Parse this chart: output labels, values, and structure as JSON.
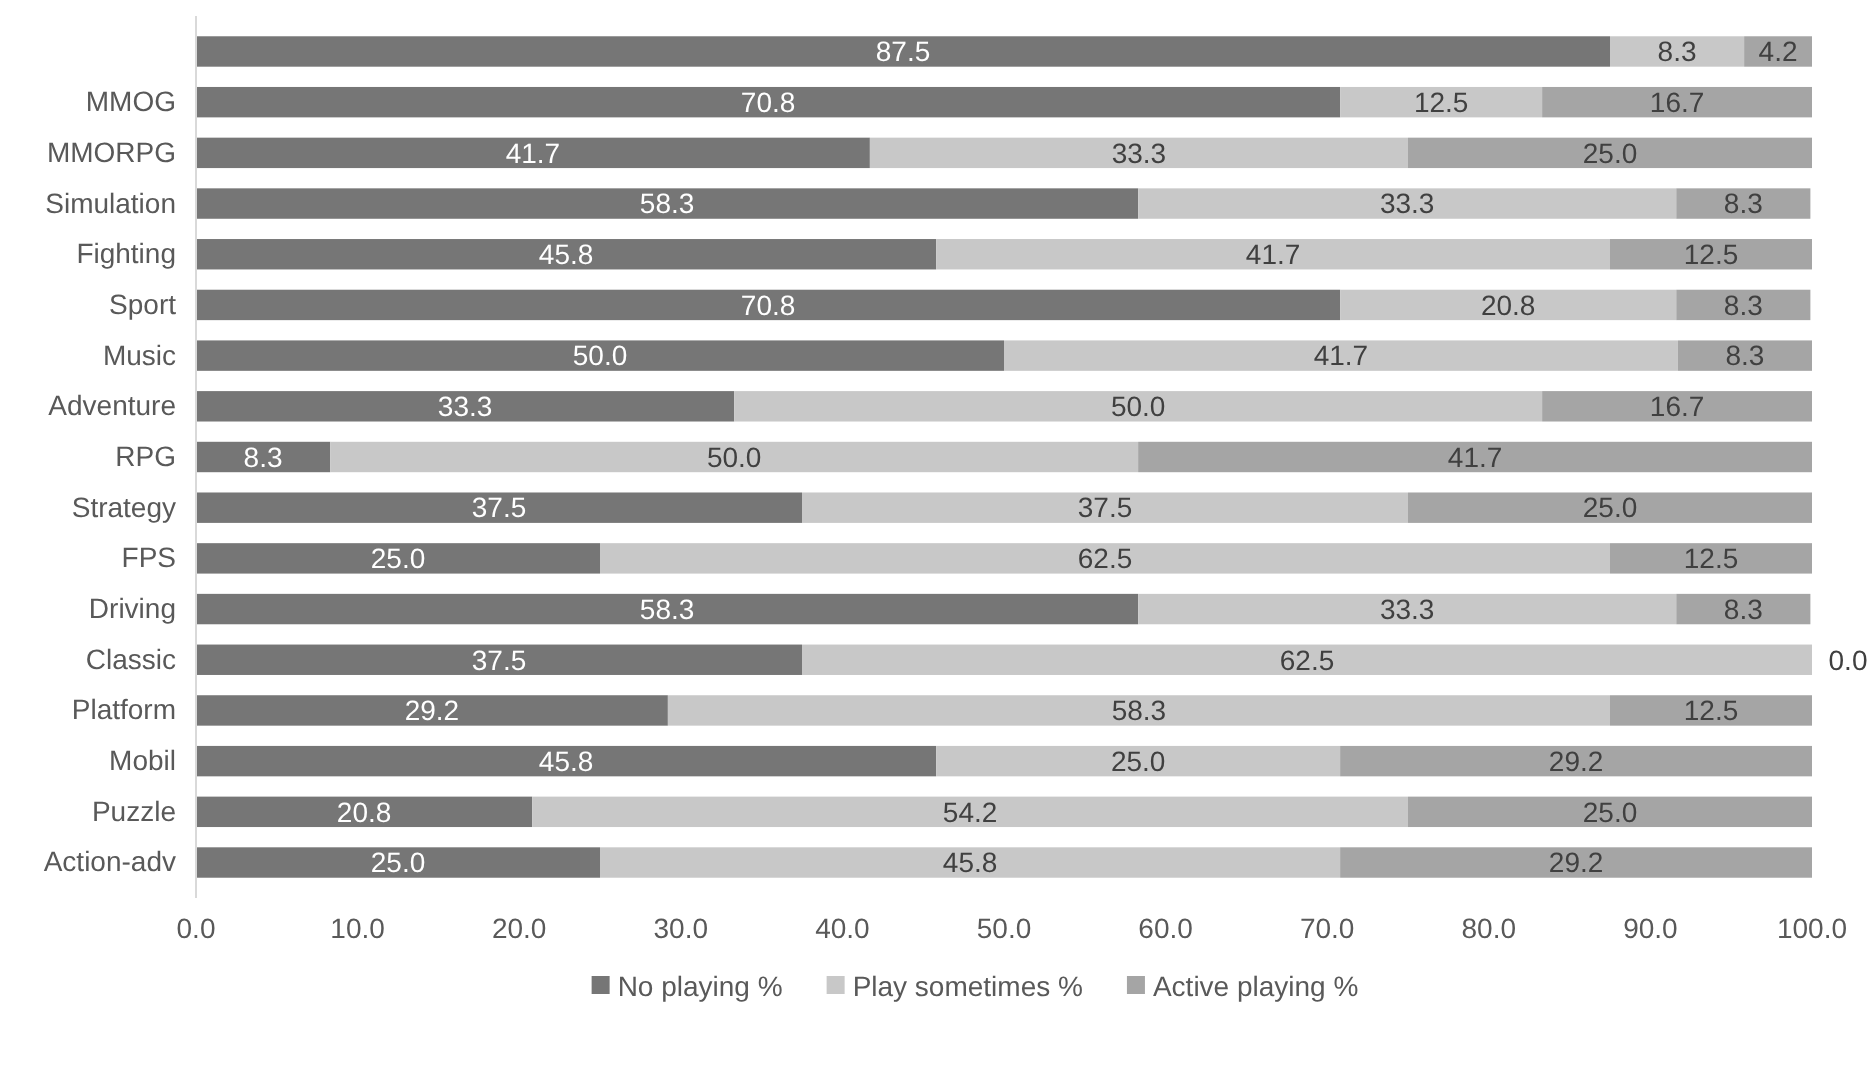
{
  "chart_data": {
    "type": "bar",
    "orientation": "horizontal",
    "stacked": true,
    "legend": "bottom",
    "grid": false,
    "categories": [
      null,
      "MMOG",
      "MMORPG",
      "Simulation",
      "Fighting",
      "Sport",
      "Music",
      "Adventure",
      "RPG",
      "Strategy",
      "FPS",
      "Driving",
      "Classic",
      "Platform",
      "Mobil",
      "Puzzle",
      "Action-adv"
    ],
    "xlim": [
      0,
      100
    ],
    "xticks": [
      {
        "value": 0,
        "label": "0.0"
      },
      {
        "value": 10,
        "label": "10.0"
      },
      {
        "value": 20,
        "label": "20.0"
      },
      {
        "value": 30,
        "label": "30.0"
      },
      {
        "value": 40,
        "label": "40.0"
      },
      {
        "value": 50,
        "label": "50.0"
      },
      {
        "value": 60,
        "label": "60.0"
      },
      {
        "value": 70,
        "label": "70.0"
      },
      {
        "value": 80,
        "label": "80.0"
      },
      {
        "value": 90,
        "label": "90.0"
      },
      {
        "value": 100,
        "label": "100.0"
      }
    ],
    "series": [
      {
        "name": "No playing %",
        "color": "#767676",
        "values": [
          87.5,
          70.8,
          41.7,
          58.3,
          45.8,
          70.8,
          50.0,
          33.3,
          8.3,
          37.5,
          25.0,
          58.3,
          37.5,
          29.2,
          45.8,
          20.8,
          25.0
        ],
        "value_labels": [
          "87.5",
          "70.8",
          "41.7",
          "58.3",
          "45.8",
          "70.8",
          "50.0",
          "33.3",
          "8.3",
          "37.5",
          "25.0",
          "58.3",
          "37.5",
          "29.2",
          "45.8",
          "20.8",
          "25.0"
        ]
      },
      {
        "name": "Play sometimes %",
        "color": "#c8c8c8",
        "values": [
          8.3,
          12.5,
          33.3,
          33.3,
          41.7,
          20.8,
          41.7,
          50.0,
          50.0,
          37.5,
          62.5,
          33.3,
          62.5,
          58.3,
          25.0,
          54.2,
          45.8
        ],
        "value_labels": [
          "8.3",
          "12.5",
          "33.3",
          "33.3",
          "41.7",
          "20.8",
          "41.7",
          "50.0",
          "50.0",
          "37.5",
          "62.5",
          "33.3",
          "62.5",
          "58.3",
          "25.0",
          "54.2",
          "45.8"
        ]
      },
      {
        "name": "Active playing %",
        "color": "#a5a5a5",
        "values": [
          4.2,
          16.7,
          25.0,
          8.3,
          12.5,
          8.3,
          8.3,
          16.7,
          41.7,
          25.0,
          12.5,
          8.3,
          0.0,
          12.5,
          29.2,
          25.0,
          29.2
        ],
        "value_labels": [
          "4.2",
          "16.7",
          "25.0",
          "8.3",
          "12.5",
          "8.3",
          "8.3",
          "16.7",
          "41.7",
          "25.0",
          "12.5",
          "8.3",
          "0.0",
          "12.5",
          "29.2",
          "25.0",
          "29.2"
        ]
      }
    ]
  }
}
